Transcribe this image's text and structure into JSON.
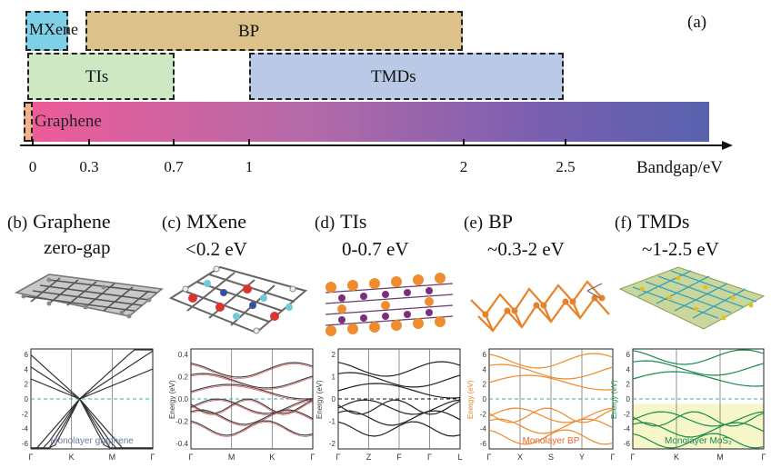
{
  "figure_label": "(a)",
  "axis": {
    "label": "Bandgap/eV",
    "ticks": [
      "0",
      "0.3",
      "0.7",
      "1",
      "2",
      "2.5"
    ]
  },
  "bars": {
    "mxene": "MXene",
    "bp": "BP",
    "tis": "TIs",
    "tmds": "TMDs",
    "graphene": "Graphene"
  },
  "colors": {
    "mxene": "#7ed0e6",
    "bp": "#dcc28a",
    "tis": "#cfe8c4",
    "tmds": "#b9c9e6",
    "graphene_start": "#ee5b98",
    "graphene_end": "#5862ad"
  },
  "panels": [
    {
      "tag": "(b)",
      "name": "Graphene",
      "sub": "zero-gap",
      "axis_ticks": [
        "Γ",
        "K",
        "M",
        "Γ"
      ],
      "inset_label": "Monolayer graphene",
      "y_ticks": [
        "6",
        "4",
        "2",
        "0",
        "-2",
        "-4",
        "-6"
      ],
      "line_color": "#333333",
      "ylabel": ""
    },
    {
      "tag": "(c)",
      "name": "MXene",
      "sub": "<0.2 eV",
      "axis_ticks": [
        "Γ",
        "M",
        "K",
        "Γ"
      ],
      "inset_label": "",
      "y_ticks": [
        "0.4",
        "0.2",
        "0.0",
        "-0.2",
        "-0.4"
      ],
      "line_color": "#444444",
      "ylabel": "Energy (eV)"
    },
    {
      "tag": "(d)",
      "name": "TIs",
      "sub": "0-0.7 eV",
      "axis_ticks": [
        "Γ",
        "Z",
        "F",
        "Γ",
        "L"
      ],
      "inset_label": "",
      "y_ticks": [
        "2",
        "1",
        "0",
        "-1",
        "-2"
      ],
      "line_color": "#222222",
      "ylabel": "Energy (eV)"
    },
    {
      "tag": "(e)",
      "name": "BP",
      "sub": "~0.3-2 eV",
      "axis_ticks": [
        "Γ",
        "X",
        "S",
        "Y",
        "Γ"
      ],
      "inset_label": "Monolayer BP",
      "y_ticks": [
        "6",
        "4",
        "2",
        "0",
        "-2",
        "-4",
        "-6"
      ],
      "line_color": "#f08a28",
      "ylabel": "Energy (eV)"
    },
    {
      "tag": "(f)",
      "name": "TMDs",
      "sub": "~1-2.5 eV",
      "axis_ticks": [
        "Γ",
        "K",
        "M",
        "Γ"
      ],
      "inset_label": "Monolayer MoS₂",
      "y_ticks": [
        "6",
        "4",
        "2",
        "0",
        "-2",
        "-4",
        "-6"
      ],
      "line_color": "#1a8a4a",
      "ylabel": "Energy (eV)"
    }
  ]
}
